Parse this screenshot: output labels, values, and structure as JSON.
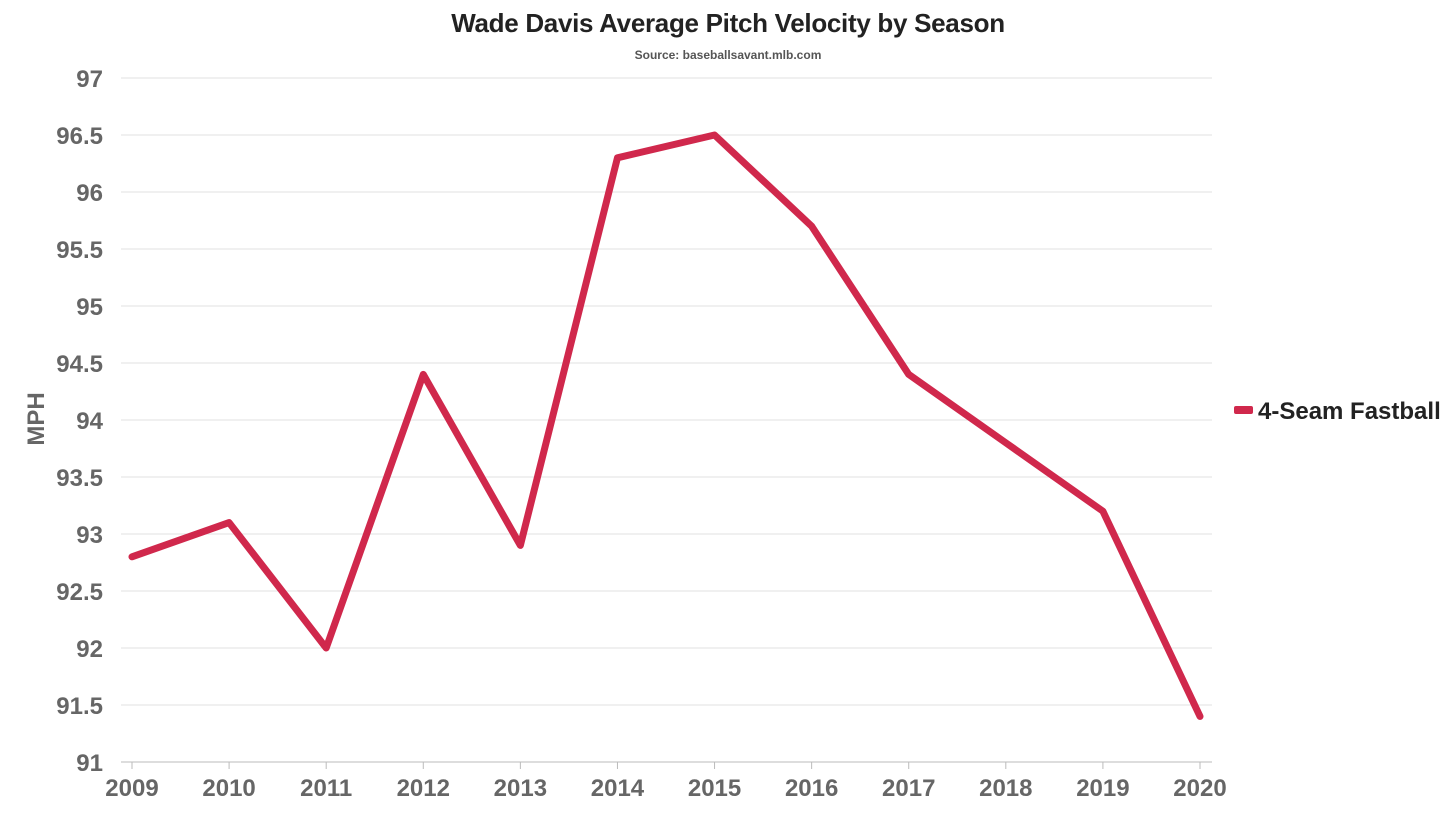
{
  "chart_data": {
    "type": "line",
    "title": "Wade Davis Average Pitch Velocity by Season",
    "subtitle": "Source: baseballsavant.mlb.com",
    "xlabel": "",
    "ylabel": "MPH",
    "ylim": [
      91,
      97
    ],
    "yticks": [
      "91",
      "91.5",
      "92",
      "92.5",
      "93",
      "93.5",
      "94",
      "94.5",
      "95",
      "95.5",
      "96",
      "96.5",
      "97"
    ],
    "categories": [
      "2009",
      "2010",
      "2011",
      "2012",
      "2013",
      "2014",
      "2015",
      "2016",
      "2017",
      "2018",
      "2019",
      "2020"
    ],
    "series": [
      {
        "name": "4-Seam Fastball",
        "color": "#d0284c",
        "values": [
          92.8,
          93.1,
          92.0,
          94.4,
          92.9,
          96.3,
          96.5,
          95.7,
          94.4,
          93.8,
          93.2,
          91.4
        ]
      }
    ],
    "grid": true,
    "legend_position": "right"
  }
}
